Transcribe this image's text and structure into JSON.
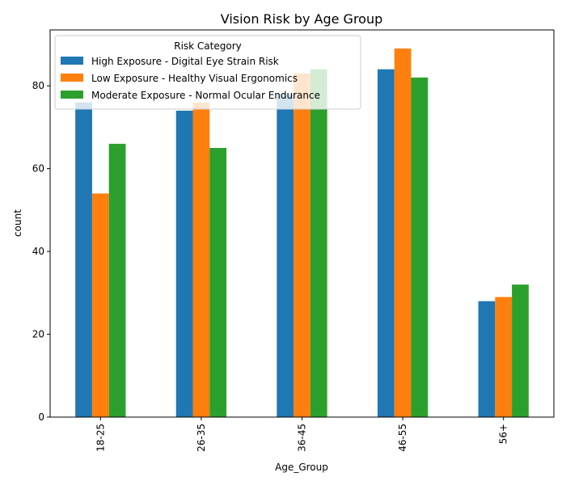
{
  "chart_data": {
    "type": "bar",
    "title": "Vision Risk by Age Group",
    "xlabel": "Age_Group",
    "ylabel": "count",
    "categories": [
      "18-25",
      "26-35",
      "36-45",
      "46-55",
      "56+"
    ],
    "ylim": [
      0,
      93.5
    ],
    "yticks": [
      0,
      20,
      40,
      60,
      80
    ],
    "grid": false,
    "legend": {
      "title": "Risk Category",
      "placement": "upper-left"
    },
    "series": [
      {
        "name": "High Exposure - Digital Eye Strain Risk",
        "color": "#1f77b4",
        "values": [
          76,
          74,
          78,
          84,
          28
        ]
      },
      {
        "name": "Low Exposure - Healthy Visual Ergonomics",
        "color": "#ff7f0e",
        "values": [
          54,
          76,
          83,
          89,
          29
        ]
      },
      {
        "name": "Moderate Exposure - Normal Ocular Endurance",
        "color": "#2ca02c",
        "values": [
          66,
          65,
          84,
          82,
          32
        ]
      }
    ]
  }
}
